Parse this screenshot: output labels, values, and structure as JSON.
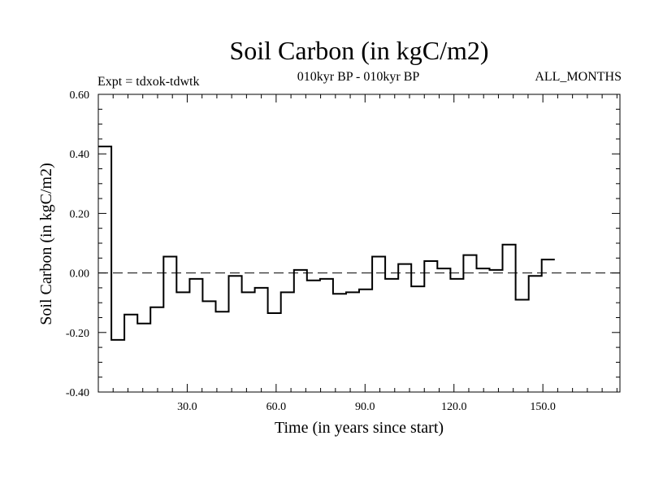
{
  "chart_data": {
    "type": "line",
    "step": true,
    "title": "Soil Carbon (in kgC/m2)",
    "subtitle": "010kyr BP - 010kyr BP",
    "experiment": "Expt = tdxok-tdwtk",
    "period": "ALL_MONTHS",
    "xlabel": "Time (in years since start)",
    "ylabel": "Soil Carbon (in kgC/m2)",
    "xlim": [
      0,
      176
    ],
    "ylim": [
      -0.4,
      0.6
    ],
    "xticks": [
      30,
      60,
      90,
      120,
      150
    ],
    "xtick_labels": [
      "30.0",
      "60.0",
      "90.0",
      "120.0",
      "150.0"
    ],
    "yticks": [
      -0.4,
      -0.2,
      0.0,
      0.2,
      0.4,
      0.6
    ],
    "ytick_labels": [
      "-0.40",
      "-0.20",
      "0.00",
      "0.20",
      "0.40",
      "0.60"
    ],
    "zero_line": true,
    "step_width": 4.4,
    "values": [
      0.425,
      -0.225,
      -0.14,
      -0.17,
      -0.115,
      0.055,
      -0.065,
      -0.02,
      -0.095,
      -0.13,
      -0.01,
      -0.065,
      -0.05,
      -0.135,
      -0.065,
      0.01,
      -0.025,
      -0.02,
      -0.07,
      -0.065,
      -0.055,
      0.055,
      -0.02,
      0.03,
      -0.045,
      0.04,
      0.015,
      -0.02,
      0.06,
      0.015,
      0.01,
      0.095,
      -0.09,
      -0.01,
      0.045
    ]
  }
}
